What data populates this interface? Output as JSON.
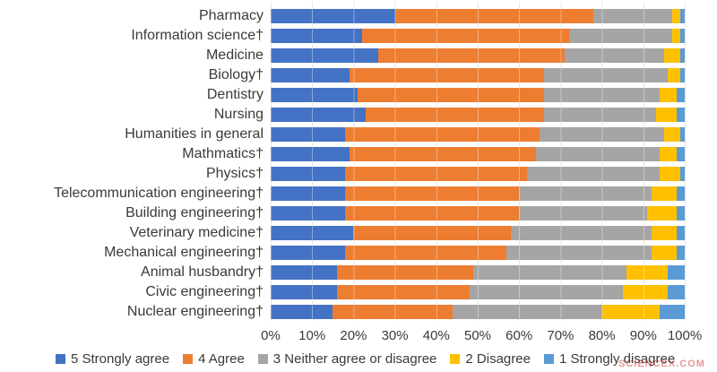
{
  "chart_data": {
    "type": "bar",
    "orientation": "horizontal",
    "stacked": true,
    "unit": "%",
    "title": "",
    "xlabel": "",
    "ylabel": "",
    "xlim": [
      0,
      100
    ],
    "grid": true,
    "legend_position": "bottom",
    "categories": [
      "Pharmacy",
      "Information science†",
      "Medicine",
      "Biology†",
      "Dentistry",
      "Nursing",
      "Humanities in general",
      "Mathmatics†",
      "Physics†",
      "Telecommunication engineering†",
      "Building engineering†",
      "Veterinary medicine†",
      "Mechanical engineering†",
      "Animal husbandry†",
      "Civic engineering†",
      "Nuclear engineering†"
    ],
    "series": [
      {
        "key": "strongly-agree",
        "name": "5 Strongly agree",
        "color": "#4472C4",
        "values": [
          30,
          22,
          26,
          19,
          21,
          23,
          18,
          19,
          18,
          18,
          18,
          20,
          18,
          16,
          16,
          15
        ]
      },
      {
        "key": "agree",
        "name": "4 Agree",
        "color": "#ED7D31",
        "values": [
          48,
          50,
          45,
          47,
          45,
          43,
          47,
          45,
          44,
          42,
          42,
          38,
          39,
          33,
          32,
          29
        ]
      },
      {
        "key": "neither",
        "name": "3 Neither agree or disagree",
        "color": "#A5A5A5",
        "values": [
          19,
          25,
          24,
          30,
          28,
          27,
          30,
          30,
          32,
          32,
          31,
          34,
          35,
          37,
          37,
          36
        ]
      },
      {
        "key": "disagree",
        "name": "2 Disagree",
        "color": "#FFC000",
        "values": [
          2,
          2,
          4,
          3,
          4,
          5,
          4,
          4,
          5,
          6,
          7,
          6,
          6,
          10,
          11,
          14
        ]
      },
      {
        "key": "strongly-disagree",
        "name": "1 Strongly disagree",
        "color": "#5B9BD5",
        "values": [
          1,
          1,
          1,
          1,
          2,
          2,
          1,
          2,
          1,
          2,
          2,
          2,
          2,
          4,
          4,
          6
        ]
      }
    ],
    "x_axis": {
      "ticks": [
        "0%",
        "10%",
        "20%",
        "30%",
        "40%",
        "50%",
        "60%",
        "70%",
        "80%",
        "90%",
        "100%"
      ]
    }
  },
  "watermark": "SCIENCEX.COM"
}
